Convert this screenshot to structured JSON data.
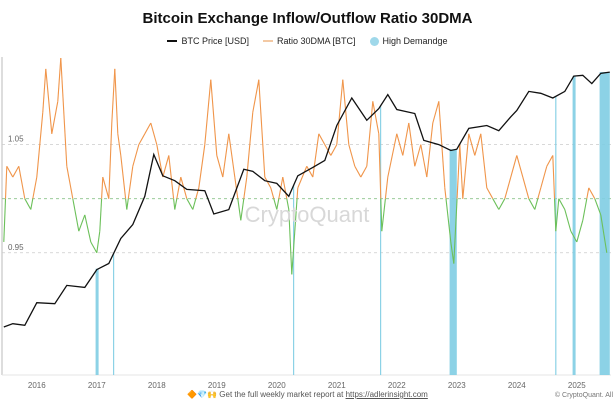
{
  "chart_data": {
    "type": "line",
    "title": "Bitcoin Exchange Inflow/Outflow Ratio 30DMA",
    "legend": [
      {
        "label": "BTC Price [USD]",
        "color": "#111111"
      },
      {
        "label": "Ratio 30DMA [BTC]",
        "color": "#f0954a"
      },
      {
        "label": "High Demandge",
        "color": "#7fcde3"
      }
    ],
    "legend_placement": "top-center",
    "xlim": [
      2015.42,
      2025.57
    ],
    "x_ticks": [
      2016,
      2017,
      2018,
      2019,
      2020,
      2021,
      2022,
      2023,
      2024,
      2025
    ],
    "ratio_axis": {
      "ylim": [
        0.837,
        1.131
      ],
      "ticks": [
        {
          "v": 1.05,
          "label": "1.05"
        },
        {
          "v": 1.0,
          "label": ""
        },
        {
          "v": 0.95,
          "label": "0.95"
        }
      ]
    },
    "price_axis": {
      "scale": "log",
      "ylim": [
        76,
        155000
      ]
    },
    "ratio_threshold": 1.0,
    "colors": {
      "above": "#f0954a",
      "below": "#6cc05a",
      "price": "#111111",
      "demand": "#7fcde3",
      "grid": "#cccccc",
      "threshold": "#8bc48a"
    },
    "ratio": {
      "x": [
        2015.45,
        2015.5,
        2015.6,
        2015.7,
        2015.8,
        2015.9,
        2016.0,
        2016.1,
        2016.15,
        2016.25,
        2016.35,
        2016.4,
        2016.5,
        2016.6,
        2016.7,
        2016.8,
        2016.9,
        2017.0,
        2017.05,
        2017.1,
        2017.2,
        2017.25,
        2017.3,
        2017.35,
        2017.4,
        2017.5,
        2017.6,
        2017.7,
        2017.8,
        2017.9,
        2018.0,
        2018.1,
        2018.2,
        2018.3,
        2018.4,
        2018.5,
        2018.6,
        2018.7,
        2018.8,
        2018.9,
        2019.0,
        2019.1,
        2019.2,
        2019.3,
        2019.4,
        2019.5,
        2019.6,
        2019.7,
        2019.8,
        2019.9,
        2020.0,
        2020.1,
        2020.2,
        2020.25,
        2020.35,
        2020.5,
        2020.6,
        2020.7,
        2020.8,
        2020.9,
        2021.0,
        2021.1,
        2021.2,
        2021.3,
        2021.4,
        2021.5,
        2021.6,
        2021.7,
        2021.75,
        2021.85,
        2022.0,
        2022.1,
        2022.2,
        2022.3,
        2022.4,
        2022.5,
        2022.6,
        2022.7,
        2022.8,
        2022.9,
        2022.95,
        2023.05,
        2023.1,
        2023.2,
        2023.3,
        2023.4,
        2023.5,
        2023.6,
        2023.7,
        2023.8,
        2023.9,
        2024.0,
        2024.1,
        2024.2,
        2024.3,
        2024.4,
        2024.5,
        2024.6,
        2024.65,
        2024.7,
        2024.8,
        2024.9,
        2025.0,
        2025.1,
        2025.2,
        2025.3,
        2025.4,
        2025.5
      ],
      "y": [
        0.96,
        1.03,
        1.02,
        1.03,
        1.0,
        0.99,
        1.02,
        1.08,
        1.12,
        1.06,
        1.09,
        1.13,
        1.03,
        1.0,
        0.97,
        0.985,
        0.96,
        0.95,
        0.97,
        1.02,
        1.0,
        1.07,
        1.12,
        1.06,
        1.04,
        0.99,
        1.03,
        1.05,
        1.06,
        1.07,
        1.05,
        1.02,
        1.04,
        0.99,
        1.02,
        1.0,
        0.99,
        1.01,
        1.05,
        1.11,
        1.04,
        1.02,
        1.06,
        1.02,
        0.98,
        1.02,
        1.08,
        1.11,
        1.02,
        1.01,
        0.99,
        1.02,
        0.99,
        0.93,
        1.01,
        1.03,
        1.02,
        1.06,
        1.05,
        1.04,
        1.05,
        1.11,
        1.05,
        1.03,
        1.02,
        1.03,
        1.09,
        1.06,
        0.97,
        1.02,
        1.06,
        1.04,
        1.07,
        1.03,
        1.05,
        1.02,
        1.07,
        1.09,
        1.01,
        0.96,
        0.94,
        1.05,
        1.0,
        1.06,
        1.04,
        1.06,
        1.01,
        1.0,
        0.99,
        1.0,
        1.02,
        1.04,
        1.02,
        1.0,
        0.99,
        1.01,
        1.03,
        1.04,
        0.97,
        1.0,
        0.99,
        0.97,
        0.96,
        0.98,
        1.01,
        1.0,
        0.985,
        0.95
      ]
    },
    "price": {
      "x": [
        2015.45,
        2015.6,
        2015.8,
        2016.0,
        2016.3,
        2016.5,
        2016.8,
        2017.0,
        2017.2,
        2017.4,
        2017.6,
        2017.8,
        2017.95,
        2018.1,
        2018.3,
        2018.5,
        2018.8,
        2018.95,
        2019.2,
        2019.45,
        2019.6,
        2019.8,
        2020.0,
        2020.2,
        2020.35,
        2020.6,
        2020.8,
        2021.0,
        2021.25,
        2021.5,
        2021.7,
        2021.85,
        2022.0,
        2022.3,
        2022.45,
        2022.7,
        2022.9,
        2023.0,
        2023.2,
        2023.5,
        2023.7,
        2023.9,
        2024.0,
        2024.2,
        2024.4,
        2024.6,
        2024.8,
        2024.95,
        2025.1,
        2025.25,
        2025.4,
        2025.55
      ],
      "y": [
        240,
        260,
        250,
        430,
        420,
        650,
        620,
        950,
        1100,
        2000,
        2800,
        5500,
        15000,
        9000,
        8000,
        6500,
        6300,
        3600,
        4000,
        10500,
        10000,
        8000,
        7500,
        5500,
        9000,
        11000,
        13000,
        30000,
        58000,
        34000,
        45000,
        63000,
        44000,
        40000,
        21000,
        19000,
        16500,
        17000,
        28000,
        30000,
        26500,
        37000,
        43000,
        68000,
        65000,
        58000,
        68000,
        98000,
        100000,
        82000,
        105000,
        108000
      ]
    },
    "high_demand_periods": [
      [
        2016.98,
        2017.03
      ],
      [
        2017.27,
        2017.285
      ],
      [
        2020.27,
        2020.285
      ],
      [
        2021.72,
        2021.735
      ],
      [
        2022.88,
        2023.0
      ],
      [
        2024.64,
        2024.655
      ],
      [
        2024.93,
        2024.98
      ],
      [
        2025.38,
        2025.55
      ]
    ]
  },
  "watermark": "CryptoQuant",
  "footer": {
    "emojis": "🔶💎🙌",
    "text": "Get the full weekly market report at ",
    "link": "https://adlerinsight.com"
  },
  "copyright": "© CryptoQuant. All"
}
